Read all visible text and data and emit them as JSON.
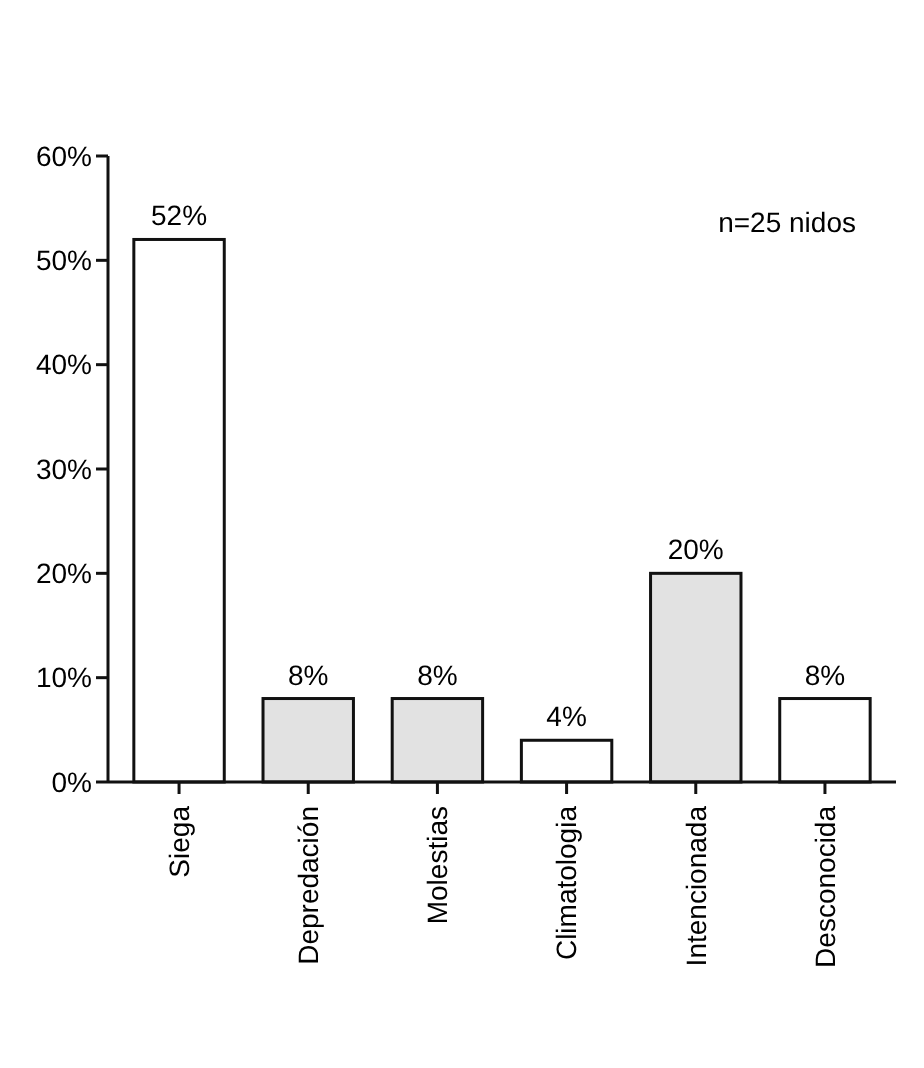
{
  "chart_data": {
    "type": "bar",
    "categories": [
      "Siega",
      "Depredación",
      "Molestias",
      "Climatologia",
      "Intencionada",
      "Desconocida"
    ],
    "values": [
      52,
      8,
      8,
      4,
      20,
      8
    ],
    "colors": [
      "#ffffff",
      "#e2e2e2",
      "#e2e2e2",
      "#ffffff",
      "#e2e2e2",
      "#ffffff"
    ],
    "value_labels": [
      "52%",
      "8%",
      "8%",
      "4%",
      "20%",
      "8%"
    ],
    "ylim": [
      0,
      60
    ],
    "yticks": [
      {
        "value": 0,
        "label": "0%"
      },
      {
        "value": 10,
        "label": "10%"
      },
      {
        "value": 20,
        "label": "20%"
      },
      {
        "value": 30,
        "label": "30%"
      },
      {
        "value": 40,
        "label": "40%"
      },
      {
        "value": 50,
        "label": "50%"
      },
      {
        "value": 60,
        "label": "60%"
      }
    ],
    "annotations": [
      "n=25 nidos"
    ],
    "grid": false
  }
}
